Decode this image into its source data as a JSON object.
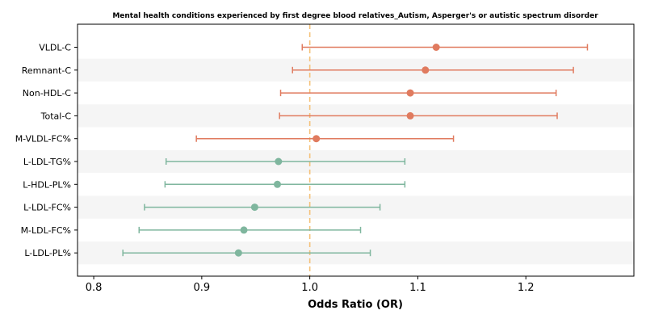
{
  "chart_data": {
    "type": "forest",
    "title": "Mental health conditions experienced by first degree blood relatives_Autism, Asperger's or autistic spectrum disorder",
    "xlabel": "Odds Ratio (OR)",
    "ylabel": "",
    "xlim": [
      0.785,
      1.3
    ],
    "xticks": [
      "0.8",
      "0.9",
      "1.0",
      "1.1",
      "1.2"
    ],
    "reference_line": 1.0,
    "reference_line_style": "dashed",
    "reference_color": "#f5c27a",
    "grid": false,
    "band_color": "#f5f5f5",
    "rows": [
      {
        "label": "VLDL-C",
        "or": 1.117,
        "lower": 0.993,
        "upper": 1.257,
        "color": "#e07b5f"
      },
      {
        "label": "Remnant-C",
        "or": 1.107,
        "lower": 0.984,
        "upper": 1.244,
        "color": "#e07b5f"
      },
      {
        "label": "Non-HDL-C",
        "or": 1.093,
        "lower": 0.973,
        "upper": 1.228,
        "color": "#e07b5f"
      },
      {
        "label": "Total-C",
        "or": 1.093,
        "lower": 0.972,
        "upper": 1.229,
        "color": "#e07b5f"
      },
      {
        "label": "M-VLDL-FC%",
        "or": 1.006,
        "lower": 0.895,
        "upper": 1.133,
        "color": "#e07b5f"
      },
      {
        "label": "L-LDL-TG%",
        "or": 0.971,
        "lower": 0.867,
        "upper": 1.088,
        "color": "#7fb69e"
      },
      {
        "label": "L-HDL-PL%",
        "or": 0.97,
        "lower": 0.866,
        "upper": 1.088,
        "color": "#7fb69e"
      },
      {
        "label": "L-LDL-FC%",
        "or": 0.949,
        "lower": 0.847,
        "upper": 1.065,
        "color": "#7fb69e"
      },
      {
        "label": "M-LDL-FC%",
        "or": 0.939,
        "lower": 0.842,
        "upper": 1.047,
        "color": "#7fb69e"
      },
      {
        "label": "L-LDL-PL%",
        "or": 0.934,
        "lower": 0.827,
        "upper": 1.056,
        "color": "#7fb69e"
      }
    ]
  }
}
